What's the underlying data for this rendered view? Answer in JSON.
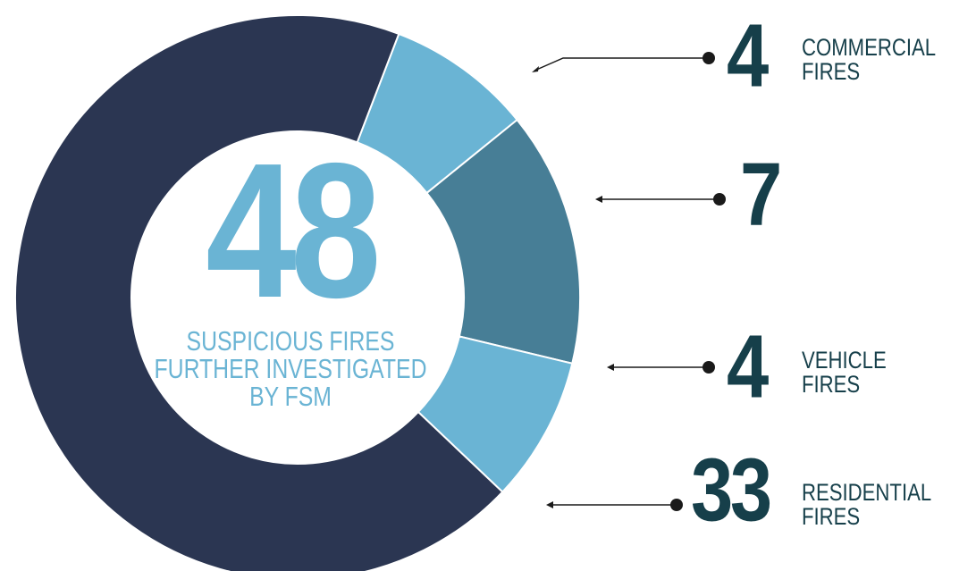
{
  "chart_data": {
    "type": "pie",
    "donut": true,
    "center_value": 48,
    "center_label": "SUSPICIOUS FIRES FURTHER INVESTIGATED BY FSM",
    "categories": [
      "COMMERCIAL FIRES",
      null,
      "VEHICLE FIRES",
      "RESIDENTIAL FIRES"
    ],
    "values": [
      4,
      7,
      4,
      33
    ],
    "colors": [
      "#6ab4d4",
      "#477e96",
      "#6ab4d4",
      "#2b3652"
    ]
  }
}
